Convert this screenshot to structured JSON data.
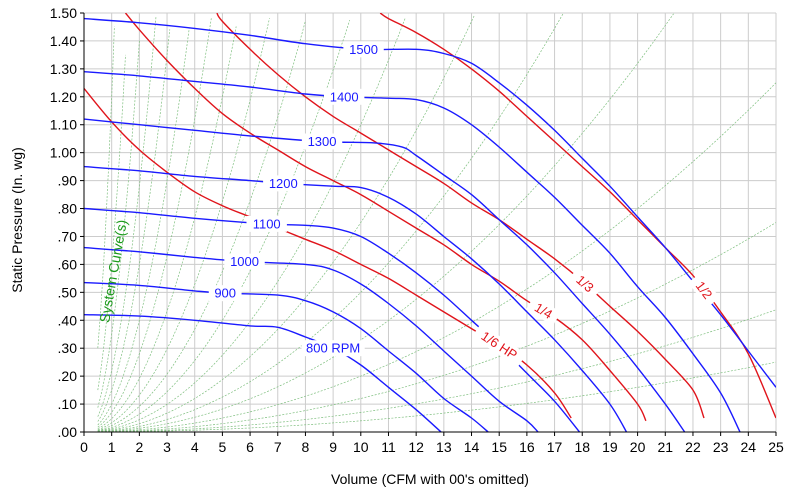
{
  "chart_data": {
    "type": "line",
    "xlabel": "Volume (CFM with 00's omitted)",
    "ylabel": "Static Pressure (In. wg)",
    "xlim": [
      0,
      25
    ],
    "ylim": [
      0,
      1.5
    ],
    "x_ticks": [
      0,
      1,
      2,
      3,
      4,
      5,
      6,
      7,
      8,
      9,
      10,
      11,
      12,
      13,
      14,
      15,
      16,
      17,
      18,
      19,
      20,
      21,
      22,
      23,
      24,
      25
    ],
    "x_tick_labels": [
      "0",
      "1",
      "2",
      "3",
      "4",
      "5",
      "6",
      "7",
      "8",
      "9",
      "10",
      "11",
      "12",
      "13",
      "14",
      "15",
      "16",
      "17",
      "18",
      "19",
      "20",
      "21",
      "22",
      "23",
      "24",
      "25"
    ],
    "y_ticks": [
      0,
      0.1,
      0.2,
      0.3,
      0.4,
      0.5,
      0.6,
      0.7,
      0.8,
      0.9,
      1.0,
      1.1,
      1.2,
      1.3,
      1.4,
      1.5
    ],
    "y_tick_labels": [
      ".00",
      ".10",
      ".20",
      ".30",
      ".40",
      ".50",
      ".60",
      ".70",
      ".80",
      ".90",
      "1.00",
      "1.10",
      "1.20",
      "1.30",
      "1.40",
      "1.50"
    ],
    "grid": true,
    "system_curves_label": "System Curve(s)",
    "system_curve_k": [
      0.0004,
      0.0007,
      0.0012,
      0.002,
      0.0033,
      0.005,
      0.0075,
      0.011,
      0.016,
      0.023,
      0.033,
      0.048,
      0.07,
      0.1,
      0.15,
      0.22,
      0.35,
      0.6,
      1.2
    ],
    "colors": {
      "rpm": "#1a1aff",
      "hp": "#e0141b",
      "system": "#7fbf7f",
      "grid": "#cccccc",
      "axis": "#000000"
    },
    "rpm_series": [
      {
        "name": "800 RPM",
        "label_x": 9.0,
        "points": [
          [
            0,
            0.42
          ],
          [
            2,
            0.415
          ],
          [
            4,
            0.4
          ],
          [
            6,
            0.38
          ],
          [
            7,
            0.375
          ],
          [
            8,
            0.34
          ],
          [
            9,
            0.3
          ],
          [
            10,
            0.24
          ],
          [
            11,
            0.16
          ],
          [
            12,
            0.08
          ],
          [
            12.9,
            0.0
          ]
        ]
      },
      {
        "name": "900",
        "label_x": 5.1,
        "points": [
          [
            0,
            0.535
          ],
          [
            2,
            0.525
          ],
          [
            4,
            0.505
          ],
          [
            5.1,
            0.497
          ],
          [
            7,
            0.49
          ],
          [
            8,
            0.47
          ],
          [
            9,
            0.43
          ],
          [
            10,
            0.37
          ],
          [
            11,
            0.29
          ],
          [
            12,
            0.21
          ],
          [
            13,
            0.12
          ],
          [
            14,
            0.05
          ],
          [
            14.6,
            0.0
          ]
        ]
      },
      {
        "name": "1000",
        "label_x": 5.8,
        "points": [
          [
            0,
            0.66
          ],
          [
            2,
            0.645
          ],
          [
            4,
            0.625
          ],
          [
            5.8,
            0.61
          ],
          [
            8,
            0.6
          ],
          [
            9,
            0.58
          ],
          [
            10,
            0.53
          ],
          [
            11,
            0.46
          ],
          [
            12,
            0.38
          ],
          [
            13,
            0.29
          ],
          [
            14,
            0.2
          ],
          [
            15,
            0.11
          ],
          [
            16,
            0.04
          ],
          [
            16.4,
            0.0
          ]
        ]
      },
      {
        "name": "1100",
        "label_x": 6.6,
        "points": [
          [
            0,
            0.8
          ],
          [
            2,
            0.785
          ],
          [
            4,
            0.765
          ],
          [
            6.6,
            0.745
          ],
          [
            8,
            0.74
          ],
          [
            9,
            0.73
          ],
          [
            10,
            0.7
          ],
          [
            11,
            0.64
          ],
          [
            12,
            0.57
          ],
          [
            13,
            0.49
          ],
          [
            14,
            0.4
          ],
          [
            15,
            0.31
          ],
          [
            16,
            0.21
          ],
          [
            17,
            0.11
          ],
          [
            17.9,
            0.0
          ]
        ]
      },
      {
        "name": "1200",
        "label_x": 7.2,
        "points": [
          [
            0,
            0.95
          ],
          [
            2,
            0.935
          ],
          [
            4,
            0.915
          ],
          [
            6,
            0.9
          ],
          [
            7.2,
            0.89
          ],
          [
            9,
            0.88
          ],
          [
            10,
            0.875
          ],
          [
            11,
            0.84
          ],
          [
            12,
            0.78
          ],
          [
            13,
            0.7
          ],
          [
            14,
            0.62
          ],
          [
            15,
            0.53
          ],
          [
            16,
            0.43
          ],
          [
            17,
            0.33
          ],
          [
            18,
            0.22
          ],
          [
            19,
            0.1
          ],
          [
            19.6,
            0.0
          ]
        ]
      },
      {
        "name": "1300",
        "label_x": 8.6,
        "points": [
          [
            0,
            1.12
          ],
          [
            2,
            1.1
          ],
          [
            4,
            1.08
          ],
          [
            6,
            1.06
          ],
          [
            8.6,
            1.04
          ],
          [
            10.5,
            1.035
          ],
          [
            11.5,
            1.02
          ],
          [
            12,
            0.99
          ],
          [
            13,
            0.92
          ],
          [
            14,
            0.85
          ],
          [
            15,
            0.76
          ],
          [
            16,
            0.67
          ],
          [
            17,
            0.57
          ],
          [
            18,
            0.46
          ],
          [
            19,
            0.35
          ],
          [
            20,
            0.23
          ],
          [
            21,
            0.1
          ],
          [
            21.7,
            0.0
          ]
        ]
      },
      {
        "name": "1400",
        "label_x": 9.4,
        "points": [
          [
            0,
            1.29
          ],
          [
            2,
            1.275
          ],
          [
            4,
            1.255
          ],
          [
            6,
            1.235
          ],
          [
            8,
            1.21
          ],
          [
            9.4,
            1.2
          ],
          [
            11,
            1.195
          ],
          [
            12,
            1.19
          ],
          [
            13,
            1.16
          ],
          [
            14,
            1.1
          ],
          [
            15,
            1.02
          ],
          [
            16,
            0.93
          ],
          [
            17,
            0.84
          ],
          [
            18,
            0.74
          ],
          [
            19,
            0.64
          ],
          [
            20,
            0.52
          ],
          [
            21,
            0.41
          ],
          [
            22,
            0.28
          ],
          [
            23,
            0.14
          ],
          [
            23.7,
            0.0
          ]
        ]
      },
      {
        "name": "1500",
        "label_x": 10.1,
        "points": [
          [
            0,
            1.48
          ],
          [
            2,
            1.465
          ],
          [
            4,
            1.445
          ],
          [
            6,
            1.42
          ],
          [
            8,
            1.39
          ],
          [
            10.1,
            1.37
          ],
          [
            12,
            1.37
          ],
          [
            13,
            1.355
          ],
          [
            14,
            1.32
          ],
          [
            15,
            1.25
          ],
          [
            16,
            1.17
          ],
          [
            17,
            1.08
          ],
          [
            18,
            0.98
          ],
          [
            19,
            0.88
          ],
          [
            20,
            0.77
          ],
          [
            21,
            0.66
          ],
          [
            22,
            0.54
          ],
          [
            23,
            0.42
          ],
          [
            24,
            0.29
          ],
          [
            25,
            0.16
          ]
        ]
      }
    ],
    "hp_series": [
      {
        "name": "1/6 HP",
        "label_x": 15.0,
        "points": [
          [
            0,
            1.23
          ],
          [
            1,
            1.11
          ],
          [
            2,
            1.01
          ],
          [
            3,
            0.93
          ],
          [
            4,
            0.86
          ],
          [
            5,
            0.81
          ],
          [
            6,
            0.77
          ],
          [
            7,
            0.73
          ],
          [
            8,
            0.69
          ],
          [
            9,
            0.65
          ],
          [
            10,
            0.6
          ],
          [
            11,
            0.55
          ],
          [
            12,
            0.49
          ],
          [
            13,
            0.43
          ],
          [
            14,
            0.37
          ],
          [
            15,
            0.31
          ],
          [
            16,
            0.24
          ],
          [
            17,
            0.14
          ],
          [
            17.6,
            0.05
          ]
        ]
      },
      {
        "name": "1/4",
        "label_x": 16.6,
        "points": [
          [
            1.5,
            1.5
          ],
          [
            2,
            1.44
          ],
          [
            3,
            1.33
          ],
          [
            4,
            1.23
          ],
          [
            5,
            1.14
          ],
          [
            6,
            1.07
          ],
          [
            7,
            1.01
          ],
          [
            8,
            0.95
          ],
          [
            9,
            0.9
          ],
          [
            10,
            0.85
          ],
          [
            11,
            0.79
          ],
          [
            12,
            0.73
          ],
          [
            13,
            0.67
          ],
          [
            14,
            0.6
          ],
          [
            15,
            0.54
          ],
          [
            16,
            0.47
          ],
          [
            17,
            0.41
          ],
          [
            18,
            0.33
          ],
          [
            19,
            0.22
          ],
          [
            20,
            0.1
          ],
          [
            20.3,
            0.04
          ]
        ]
      },
      {
        "name": "1/3",
        "label_x": 18.1,
        "points": [
          [
            4.8,
            1.5
          ],
          [
            5,
            1.47
          ],
          [
            6,
            1.37
          ],
          [
            7,
            1.28
          ],
          [
            8,
            1.2
          ],
          [
            9,
            1.13
          ],
          [
            10,
            1.07
          ],
          [
            11,
            1.01
          ],
          [
            12,
            0.95
          ],
          [
            13,
            0.89
          ],
          [
            14,
            0.82
          ],
          [
            15,
            0.76
          ],
          [
            16,
            0.69
          ],
          [
            17,
            0.62
          ],
          [
            18,
            0.54
          ],
          [
            19,
            0.45
          ],
          [
            20,
            0.36
          ],
          [
            21,
            0.26
          ],
          [
            22,
            0.15
          ],
          [
            22.4,
            0.05
          ]
        ]
      },
      {
        "name": "1/2",
        "label_x": 22.4,
        "points": [
          [
            10.7,
            1.5
          ],
          [
            11,
            1.48
          ],
          [
            12,
            1.43
          ],
          [
            13,
            1.37
          ],
          [
            14,
            1.3
          ],
          [
            15,
            1.22
          ],
          [
            16,
            1.13
          ],
          [
            17,
            1.04
          ],
          [
            18,
            0.95
          ],
          [
            19,
            0.86
          ],
          [
            20,
            0.76
          ],
          [
            21,
            0.66
          ],
          [
            22,
            0.56
          ],
          [
            23,
            0.43
          ],
          [
            24,
            0.28
          ],
          [
            25,
            0.05
          ]
        ]
      }
    ]
  }
}
